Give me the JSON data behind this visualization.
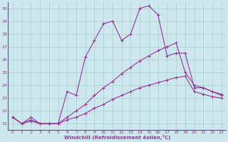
{
  "xlabel": "Windchill (Refroidissement éolien,°C)",
  "xlim": [
    -0.5,
    23.5
  ],
  "ylim": [
    20.5,
    30.5
  ],
  "yticks": [
    21,
    22,
    23,
    24,
    25,
    26,
    27,
    28,
    29,
    30
  ],
  "xticks": [
    0,
    1,
    2,
    3,
    4,
    5,
    6,
    7,
    8,
    9,
    10,
    11,
    12,
    13,
    14,
    15,
    16,
    17,
    18,
    19,
    20,
    21,
    22,
    23
  ],
  "bg_color": "#cce8ee",
  "grid_color": "#aacccc",
  "line_color": "#993399",
  "line1_y": [
    21.5,
    21.0,
    21.5,
    21.0,
    21.0,
    21.0,
    23.5,
    23.2,
    26.2,
    27.5,
    28.8,
    29.0,
    27.5,
    28.0,
    30.0,
    30.2,
    29.5,
    26.3,
    26.5,
    26.5,
    23.8,
    23.8,
    23.5,
    23.2
  ],
  "line2_y": [
    21.5,
    21.0,
    21.3,
    21.0,
    21.0,
    21.0,
    21.5,
    22.0,
    22.5,
    23.2,
    23.8,
    24.3,
    24.9,
    25.4,
    25.9,
    26.3,
    26.7,
    27.0,
    27.3,
    25.0,
    24.0,
    23.8,
    23.5,
    23.3
  ],
  "line3_y": [
    21.5,
    21.0,
    21.2,
    21.0,
    21.0,
    21.0,
    21.3,
    21.5,
    21.8,
    22.2,
    22.5,
    22.9,
    23.2,
    23.5,
    23.8,
    24.0,
    24.2,
    24.4,
    24.6,
    24.7,
    23.5,
    23.3,
    23.1,
    23.0
  ]
}
